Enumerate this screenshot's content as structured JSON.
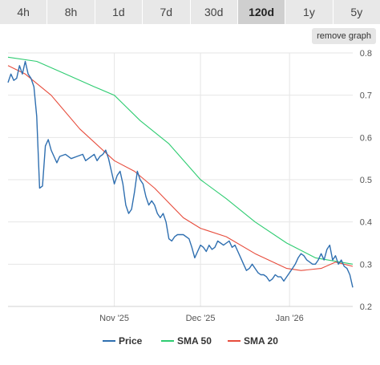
{
  "range_tabs": [
    {
      "label": "4h",
      "active": false
    },
    {
      "label": "8h",
      "active": false
    },
    {
      "label": "1d",
      "active": false
    },
    {
      "label": "7d",
      "active": false
    },
    {
      "label": "30d",
      "active": false
    },
    {
      "label": "120d",
      "active": true
    },
    {
      "label": "1y",
      "active": false
    },
    {
      "label": "5y",
      "active": false
    }
  ],
  "remove_graph_label": "remove graph",
  "colors": {
    "price": "#2f6fb0",
    "sma50": "#2ecc71",
    "sma20": "#e74c3c",
    "grid": "#e6e6e6"
  },
  "chart_data": {
    "type": "line",
    "title": "",
    "xlabel": "",
    "ylabel": "",
    "ylim": [
      0.2,
      0.8
    ],
    "yticks": [
      0.2,
      0.3,
      0.4,
      0.5,
      0.6,
      0.7,
      0.8
    ],
    "xlim": [
      "2025-09-25",
      "2026-01-23"
    ],
    "xticks": [
      {
        "label": "Nov '25",
        "date": "2025-11-01"
      },
      {
        "label": "Dec '25",
        "date": "2025-12-01"
      },
      {
        "label": "Jan '26",
        "date": "2026-01-01"
      }
    ],
    "grid": true,
    "legend_position": "bottom",
    "series": [
      {
        "name": "Price",
        "color": "#2f6fb0",
        "points": [
          [
            "2025-09-25",
            0.73
          ],
          [
            "2025-09-26",
            0.75
          ],
          [
            "2025-09-27",
            0.735
          ],
          [
            "2025-09-28",
            0.74
          ],
          [
            "2025-09-29",
            0.77
          ],
          [
            "2025-09-30",
            0.75
          ],
          [
            "2025-10-01",
            0.78
          ],
          [
            "2025-10-02",
            0.75
          ],
          [
            "2025-10-03",
            0.74
          ],
          [
            "2025-10-04",
            0.72
          ],
          [
            "2025-10-05",
            0.65
          ],
          [
            "2025-10-06",
            0.48
          ],
          [
            "2025-10-07",
            0.485
          ],
          [
            "2025-10-08",
            0.58
          ],
          [
            "2025-10-09",
            0.595
          ],
          [
            "2025-10-10",
            0.57
          ],
          [
            "2025-10-12",
            0.54
          ],
          [
            "2025-10-13",
            0.555
          ],
          [
            "2025-10-15",
            0.56
          ],
          [
            "2025-10-17",
            0.55
          ],
          [
            "2025-10-19",
            0.555
          ],
          [
            "2025-10-21",
            0.56
          ],
          [
            "2025-10-22",
            0.545
          ],
          [
            "2025-10-23",
            0.55
          ],
          [
            "2025-10-25",
            0.56
          ],
          [
            "2025-10-26",
            0.545
          ],
          [
            "2025-10-27",
            0.555
          ],
          [
            "2025-10-28",
            0.56
          ],
          [
            "2025-10-29",
            0.57
          ],
          [
            "2025-10-30",
            0.55
          ],
          [
            "2025-10-31",
            0.52
          ],
          [
            "2025-11-01",
            0.49
          ],
          [
            "2025-11-02",
            0.51
          ],
          [
            "2025-11-03",
            0.52
          ],
          [
            "2025-11-04",
            0.49
          ],
          [
            "2025-11-05",
            0.44
          ],
          [
            "2025-11-06",
            0.42
          ],
          [
            "2025-11-07",
            0.43
          ],
          [
            "2025-11-08",
            0.47
          ],
          [
            "2025-11-09",
            0.52
          ],
          [
            "2025-11-10",
            0.5
          ],
          [
            "2025-11-11",
            0.49
          ],
          [
            "2025-11-12",
            0.46
          ],
          [
            "2025-11-13",
            0.44
          ],
          [
            "2025-11-14",
            0.45
          ],
          [
            "2025-11-15",
            0.44
          ],
          [
            "2025-11-16",
            0.42
          ],
          [
            "2025-11-17",
            0.41
          ],
          [
            "2025-11-18",
            0.42
          ],
          [
            "2025-11-19",
            0.4
          ],
          [
            "2025-11-20",
            0.36
          ],
          [
            "2025-11-21",
            0.355
          ],
          [
            "2025-11-22",
            0.365
          ],
          [
            "2025-11-23",
            0.37
          ],
          [
            "2025-11-25",
            0.37
          ],
          [
            "2025-11-27",
            0.36
          ],
          [
            "2025-11-28",
            0.34
          ],
          [
            "2025-11-29",
            0.315
          ],
          [
            "2025-11-30",
            0.33
          ],
          [
            "2025-12-01",
            0.345
          ],
          [
            "2025-12-02",
            0.34
          ],
          [
            "2025-12-03",
            0.33
          ],
          [
            "2025-12-04",
            0.345
          ],
          [
            "2025-12-05",
            0.335
          ],
          [
            "2025-12-06",
            0.34
          ],
          [
            "2025-12-07",
            0.355
          ],
          [
            "2025-12-08",
            0.35
          ],
          [
            "2025-12-09",
            0.345
          ],
          [
            "2025-12-10",
            0.35
          ],
          [
            "2025-12-11",
            0.355
          ],
          [
            "2025-12-12",
            0.34
          ],
          [
            "2025-12-13",
            0.345
          ],
          [
            "2025-12-14",
            0.33
          ],
          [
            "2025-12-15",
            0.315
          ],
          [
            "2025-12-16",
            0.3
          ],
          [
            "2025-12-17",
            0.285
          ],
          [
            "2025-12-18",
            0.29
          ],
          [
            "2025-12-19",
            0.3
          ],
          [
            "2025-12-20",
            0.29
          ],
          [
            "2025-12-21",
            0.28
          ],
          [
            "2025-12-22",
            0.275
          ],
          [
            "2025-12-23",
            0.275
          ],
          [
            "2025-12-24",
            0.27
          ],
          [
            "2025-12-25",
            0.26
          ],
          [
            "2025-12-26",
            0.265
          ],
          [
            "2025-12-27",
            0.275
          ],
          [
            "2025-12-28",
            0.27
          ],
          [
            "2025-12-29",
            0.27
          ],
          [
            "2025-12-30",
            0.26
          ],
          [
            "2025-12-31",
            0.27
          ],
          [
            "2026-01-01",
            0.28
          ],
          [
            "2026-01-02",
            0.29
          ],
          [
            "2026-01-03",
            0.3
          ],
          [
            "2026-01-04",
            0.315
          ],
          [
            "2026-01-05",
            0.325
          ],
          [
            "2026-01-06",
            0.32
          ],
          [
            "2026-01-07",
            0.31
          ],
          [
            "2026-01-08",
            0.305
          ],
          [
            "2026-01-09",
            0.3
          ],
          [
            "2026-01-10",
            0.3
          ],
          [
            "2026-01-11",
            0.31
          ],
          [
            "2026-01-12",
            0.325
          ],
          [
            "2026-01-13",
            0.31
          ],
          [
            "2026-01-14",
            0.335
          ],
          [
            "2026-01-15",
            0.345
          ],
          [
            "2026-01-16",
            0.31
          ],
          [
            "2026-01-17",
            0.32
          ],
          [
            "2026-01-18",
            0.3
          ],
          [
            "2026-01-19",
            0.31
          ],
          [
            "2026-01-20",
            0.295
          ],
          [
            "2026-01-21",
            0.29
          ],
          [
            "2026-01-22",
            0.275
          ],
          [
            "2026-01-23",
            0.245
          ]
        ]
      },
      {
        "name": "SMA 50",
        "color": "#2ecc71",
        "points": [
          [
            "2025-09-25",
            0.79
          ],
          [
            "2025-10-05",
            0.78
          ],
          [
            "2025-10-15",
            0.75
          ],
          [
            "2025-10-25",
            0.72
          ],
          [
            "2025-11-01",
            0.7
          ],
          [
            "2025-11-10",
            0.64
          ],
          [
            "2025-11-20",
            0.585
          ],
          [
            "2025-12-01",
            0.5
          ],
          [
            "2025-12-10",
            0.455
          ],
          [
            "2025-12-20",
            0.4
          ],
          [
            "2025-12-31",
            0.35
          ],
          [
            "2026-01-10",
            0.315
          ],
          [
            "2026-01-23",
            0.3
          ]
        ]
      },
      {
        "name": "SMA 20",
        "color": "#e74c3c",
        "points": [
          [
            "2025-09-25",
            0.77
          ],
          [
            "2025-10-01",
            0.75
          ],
          [
            "2025-10-10",
            0.7
          ],
          [
            "2025-10-20",
            0.62
          ],
          [
            "2025-11-01",
            0.545
          ],
          [
            "2025-11-08",
            0.52
          ],
          [
            "2025-11-15",
            0.48
          ],
          [
            "2025-11-25",
            0.41
          ],
          [
            "2025-12-01",
            0.385
          ],
          [
            "2025-12-10",
            0.365
          ],
          [
            "2025-12-20",
            0.325
          ],
          [
            "2025-12-31",
            0.29
          ],
          [
            "2026-01-05",
            0.285
          ],
          [
            "2026-01-12",
            0.29
          ],
          [
            "2026-01-17",
            0.305
          ],
          [
            "2026-01-23",
            0.295
          ]
        ]
      }
    ]
  }
}
